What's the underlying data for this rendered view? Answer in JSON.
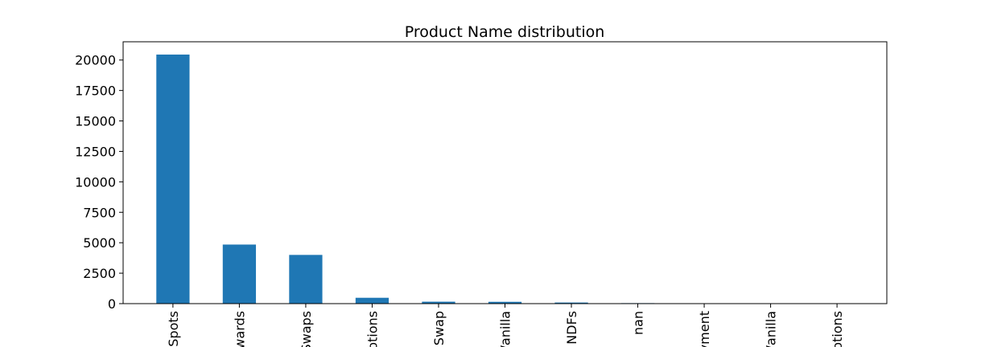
{
  "chart_data": {
    "type": "bar",
    "title": "Product Name distribution",
    "xlabel": "",
    "ylabel": "",
    "categories": [
      "Spots",
      "wards",
      "Swaps",
      "otions",
      "Swap",
      "/anilla",
      "NDFs",
      "nan",
      "yment",
      "/anilla",
      "otions"
    ],
    "values": [
      20450,
      4850,
      4000,
      480,
      160,
      150,
      90,
      40,
      10,
      5,
      3
    ],
    "ylim": [
      0,
      21500
    ],
    "yticks": [
      0,
      2500,
      5000,
      7500,
      10000,
      12500,
      15000,
      17500,
      20000
    ],
    "grid": false,
    "bar_color": "#1f77b4"
  }
}
